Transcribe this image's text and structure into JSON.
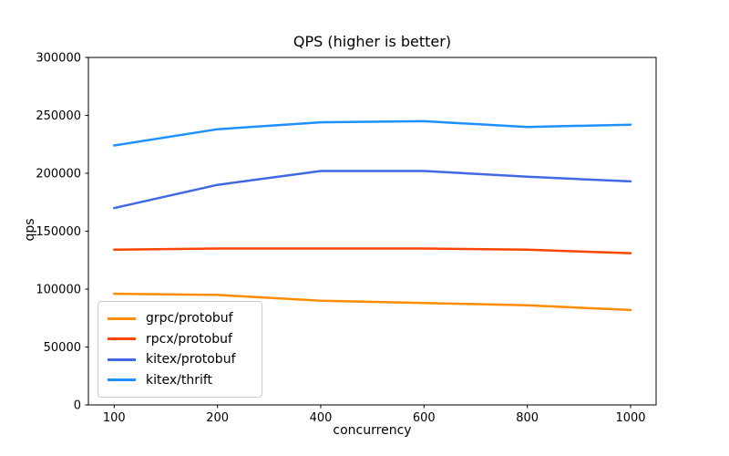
{
  "chart_data": {
    "type": "line",
    "title": "QPS (higher is better)",
    "xlabel": "concurrency",
    "ylabel": "qps",
    "categories": [
      100,
      200,
      400,
      600,
      800,
      1000
    ],
    "series": [
      {
        "name": "grpc/protobuf",
        "color": "#FF8C00",
        "values": [
          96000,
          95000,
          90000,
          88000,
          86000,
          82000
        ]
      },
      {
        "name": "rpcx/protobuf",
        "color": "#FF4500",
        "values": [
          134000,
          135000,
          135000,
          135000,
          134000,
          131000
        ]
      },
      {
        "name": "kitex/protobuf",
        "color": "#4169E1",
        "values": [
          170000,
          190000,
          202000,
          202000,
          197000,
          193000
        ]
      },
      {
        "name": "kitex/thrift",
        "color": "#1E90FF",
        "values": [
          224000,
          238000,
          244000,
          245000,
          240000,
          242000
        ]
      }
    ],
    "ylim": [
      0,
      300000
    ],
    "yticks": [
      0,
      50000,
      100000,
      150000,
      200000,
      250000,
      300000
    ],
    "grid": false,
    "legend_position": "lower left",
    "axis_color": "#000000",
    "background_color": "#ffffff"
  }
}
